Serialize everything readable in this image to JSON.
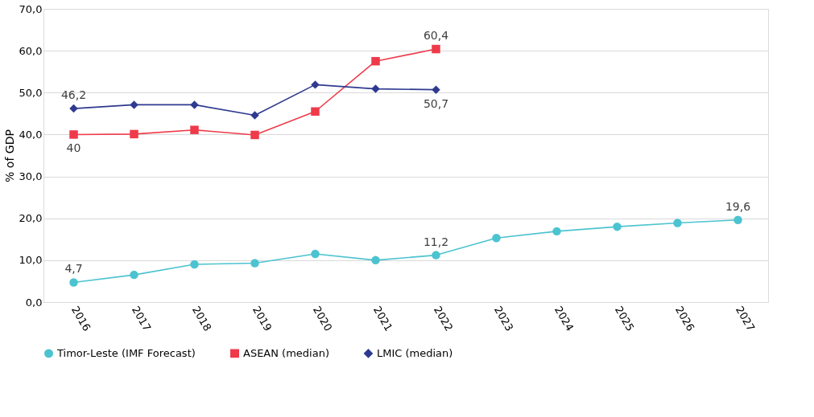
{
  "chart_data": {
    "type": "line",
    "ylabel": "% of GDP",
    "categories": [
      "2016",
      "2017",
      "2018",
      "2019",
      "2020",
      "2021",
      "2022",
      "2023",
      "2024",
      "2025",
      "2026",
      "2027"
    ],
    "ylim": [
      0,
      70
    ],
    "yticks": [
      {
        "value": 0,
        "label": "0,0"
      },
      {
        "value": 10,
        "label": "10,0"
      },
      {
        "value": 20,
        "label": "20,0"
      },
      {
        "value": 30,
        "label": "30,0"
      },
      {
        "value": 40,
        "label": "40,0"
      },
      {
        "value": 50,
        "label": "50,0"
      },
      {
        "value": 60,
        "label": "60,0"
      },
      {
        "value": 70,
        "label": "70,0"
      }
    ],
    "grid": "y",
    "legend": "bottom",
    "line_style": "solid",
    "series": [
      {
        "name": "Timor-Leste (IMF Forecast)",
        "color": "#4cc3d0",
        "marker": "circle",
        "values": [
          4.7,
          6.5,
          9.0,
          9.3,
          11.5,
          10.0,
          11.2,
          15.3,
          16.9,
          18.0,
          18.9,
          19.6
        ],
        "value_labels": [
          "4,7",
          null,
          null,
          null,
          null,
          null,
          "11,2",
          null,
          null,
          null,
          null,
          "19,6"
        ]
      },
      {
        "name": "ASEAN (median)",
        "color": "#ee3a4a",
        "marker": "square",
        "values": [
          40,
          40.1,
          41.1,
          39.9,
          45.5,
          57.5,
          60.4,
          null,
          null,
          null,
          null,
          null
        ],
        "value_labels": [
          "40",
          null,
          null,
          null,
          null,
          null,
          "60,4",
          null,
          null,
          null,
          null,
          null
        ]
      },
      {
        "name": "LMIC (median)",
        "color": "#2e3a8f",
        "marker": "diamond",
        "values": [
          46.2,
          47.1,
          47.1,
          44.6,
          51.9,
          50.9,
          50.7,
          null,
          null,
          null,
          null,
          null
        ],
        "value_labels": [
          "46,2",
          null,
          null,
          null,
          null,
          null,
          "50,7",
          null,
          null,
          null,
          null,
          null
        ]
      }
    ]
  }
}
